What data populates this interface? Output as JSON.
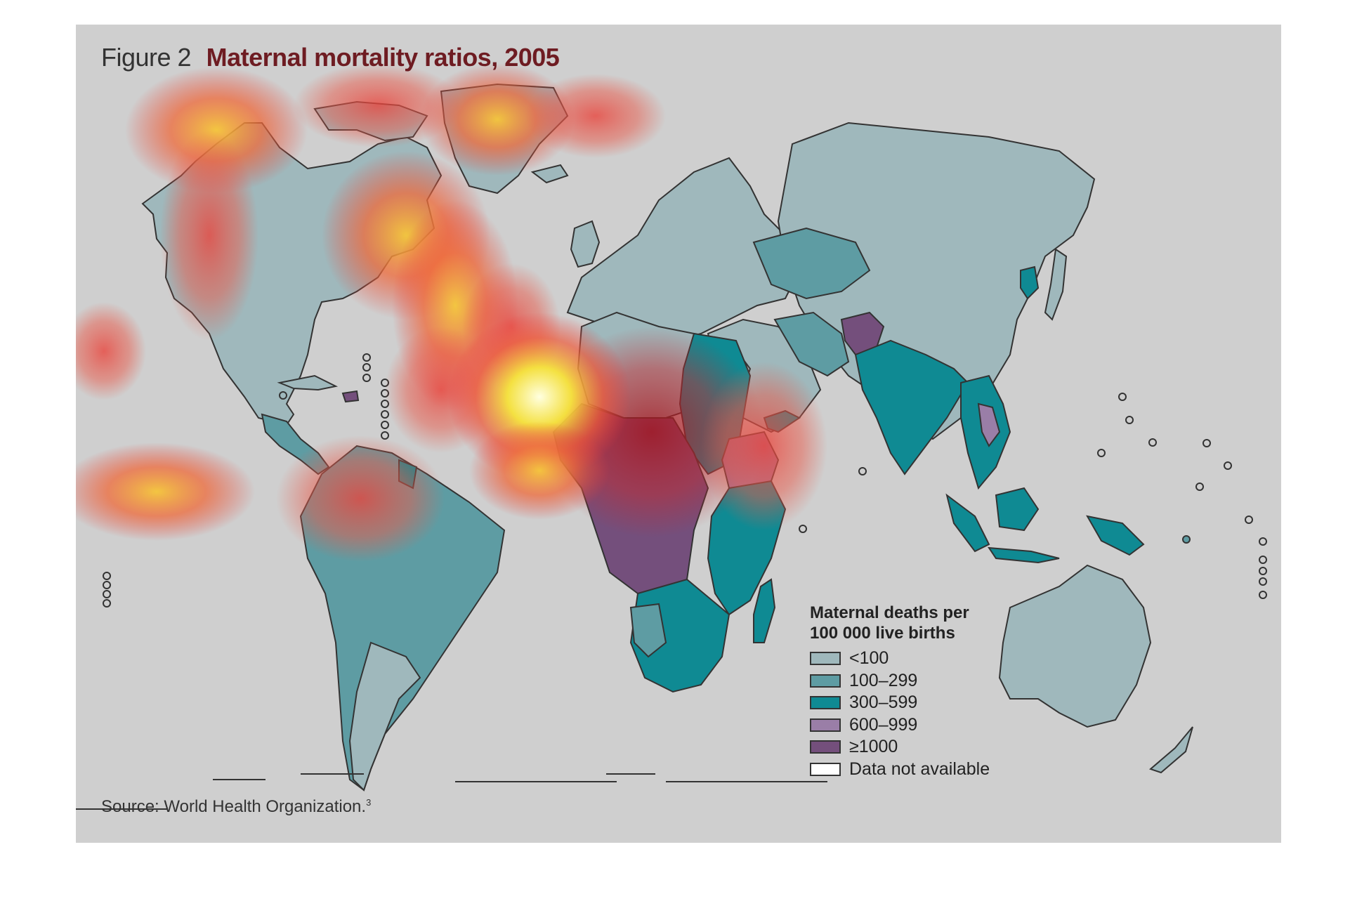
{
  "figure": {
    "number_label": "Figure 2",
    "title": "Maternal mortality ratios, 2005"
  },
  "legend": {
    "title_line1": "Maternal deaths per",
    "title_line2": "100 000 live births",
    "items": [
      {
        "label": "<100",
        "color": "#9fb8bc"
      },
      {
        "label": "100–299",
        "color": "#5e9ca3"
      },
      {
        "label": "300–599",
        "color": "#0f8a93"
      },
      {
        "label": "600–999",
        "color": "#9a7ea7"
      },
      {
        "label": "≥1000",
        "color": "#744f7c"
      },
      {
        "label": "Data not available",
        "color": "#ffffff"
      }
    ]
  },
  "source": {
    "text": "Source: World Health Organization.",
    "footnote": "3"
  },
  "colors": {
    "panel_background": "#cfcfcf",
    "title_accent": "#6e1c22",
    "border": "#333333"
  }
}
